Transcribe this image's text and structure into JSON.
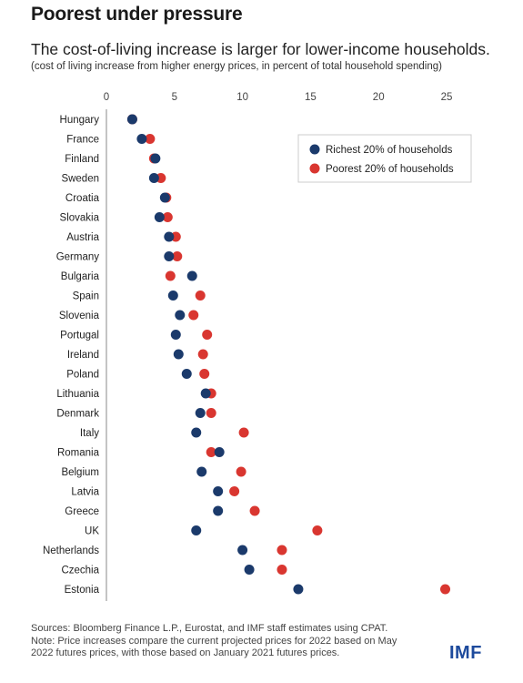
{
  "header": {
    "title": "Poorest under pressure",
    "subtitle": "The cost-of-living increase is larger for lower-income households.",
    "note": "(cost of living increase from higher energy prices, in percent of total household spending)"
  },
  "footer": {
    "sources": "Sources: Bloomberg Finance L.P., Eurostat, and IMF staff estimates using CPAT.",
    "note": "Note: Price increases compare the current projected prices for 2022 based on May 2022 futures prices, with those based on January 2021 futures prices.",
    "logo": "IMF"
  },
  "chart_data": {
    "type": "scatter",
    "orientation": "horizontal-dot-plot",
    "title": "Poorest under pressure",
    "xlim": [
      0,
      25
    ],
    "xticks": [
      0,
      5,
      10,
      15,
      20,
      25
    ],
    "x_axis_position": "top",
    "grid": false,
    "legend_position": "top-right",
    "categories": [
      "Hungary",
      "France",
      "Finland",
      "Sweden",
      "Croatia",
      "Slovakia",
      "Austria",
      "Germany",
      "Bulgaria",
      "Spain",
      "Slovenia",
      "Portugal",
      "Ireland",
      "Poland",
      "Lithuania",
      "Denmark",
      "Italy",
      "Romania",
      "Belgium",
      "Latvia",
      "Greece",
      "UK",
      "Netherlands",
      "Czechia",
      "Estonia"
    ],
    "series": [
      {
        "name": "Richest 20% of households",
        "color": "#1b3a6b",
        "values": [
          1.9,
          2.6,
          3.6,
          3.5,
          4.3,
          3.9,
          4.6,
          4.6,
          6.3,
          4.9,
          5.4,
          5.1,
          5.3,
          5.9,
          7.3,
          6.9,
          6.6,
          8.3,
          7.0,
          8.2,
          8.2,
          6.6,
          10.0,
          10.5,
          14.1
        ]
      },
      {
        "name": "Poorest 20% of households",
        "color": "#d93630",
        "values": [
          1.9,
          3.2,
          3.5,
          4.0,
          4.4,
          4.5,
          5.1,
          5.2,
          4.7,
          6.9,
          6.4,
          7.4,
          7.1,
          7.2,
          7.7,
          7.7,
          10.1,
          7.7,
          9.9,
          9.4,
          10.9,
          15.5,
          12.9,
          12.9,
          24.9
        ]
      }
    ]
  }
}
